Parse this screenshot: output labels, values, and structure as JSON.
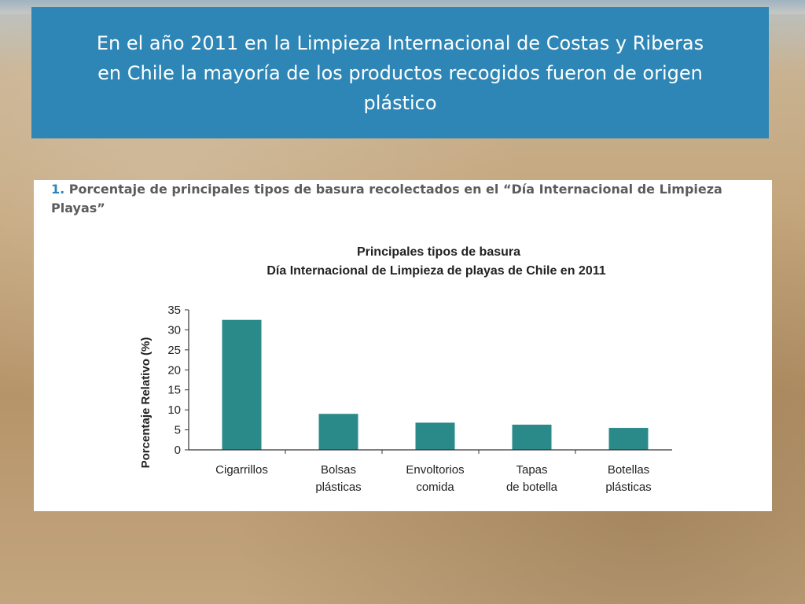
{
  "slide": {
    "title": "En el año 2011 en la Limpieza Internacional de Costas y Riberas en Chile la mayoría de los productos recogidos fueron de origen plástico",
    "caption_number": "1.",
    "caption_text": "Porcentaje de principales tipos de basura recolectados en el “Día Internacional de Limpieza Playas”"
  },
  "colors": {
    "banner": "#2e86b6",
    "bar": "#2a8a8a"
  },
  "chart_data": {
    "type": "bar",
    "title": "Principales tipos de basura",
    "subtitle": "Día Internacional de Limpieza de playas de Chile en 2011",
    "ylabel": "Porcentaje Relativo (%)",
    "xlabel": "",
    "ylim": [
      0,
      35
    ],
    "yticks": [
      0,
      5,
      10,
      15,
      20,
      25,
      30,
      35
    ],
    "grid": false,
    "categories": [
      [
        "Cigarrillos"
      ],
      [
        "Bolsas",
        "plásticas"
      ],
      [
        "Envoltorios",
        "comida"
      ],
      [
        "Tapas",
        "de botella"
      ],
      [
        "Botellas",
        "plásticas"
      ]
    ],
    "values": [
      32.5,
      9,
      6.8,
      6.3,
      5.5
    ]
  }
}
